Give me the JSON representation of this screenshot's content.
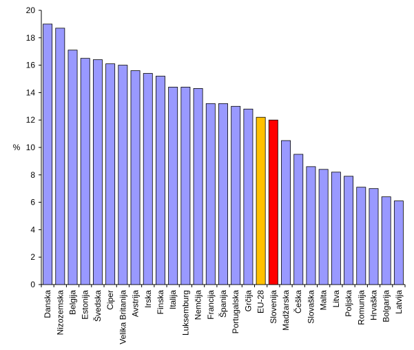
{
  "chart_data": {
    "type": "bar",
    "title": "",
    "xlabel": "",
    "ylabel": "%",
    "ylim": [
      0,
      20
    ],
    "yticks": [
      0,
      2,
      4,
      6,
      8,
      10,
      12,
      14,
      16,
      18,
      20
    ],
    "grid": false,
    "legend": "none",
    "categories": [
      "Danska",
      "Nizozemska",
      "Belgija",
      "Estonija",
      "Švedska",
      "Ciper",
      "Velika Britanija",
      "Avstrija",
      "Irska",
      "Finska",
      "Italija",
      "Luksemburg",
      "Nemčija",
      "Francija",
      "Španija",
      "Portugalska",
      "Grčija",
      "EU-28",
      "Slovenija",
      "Madžarska",
      "Češka",
      "Slovaška",
      "Malta",
      "Litva",
      "Poljska",
      "Romunija",
      "Hrvaška",
      "Bolgarija",
      "Latvija"
    ],
    "values": [
      19.0,
      18.7,
      17.1,
      16.5,
      16.4,
      16.1,
      16.0,
      15.6,
      15.4,
      15.2,
      14.4,
      14.4,
      14.3,
      13.2,
      13.2,
      13.0,
      12.8,
      12.2,
      12.0,
      10.5,
      9.5,
      8.6,
      8.4,
      8.2,
      7.9,
      7.1,
      7.0,
      6.4,
      6.1
    ],
    "colors": {
      "default": "#9999ff",
      "EU-28": "#ffc000",
      "Slovenija": "#ff0000"
    }
  }
}
